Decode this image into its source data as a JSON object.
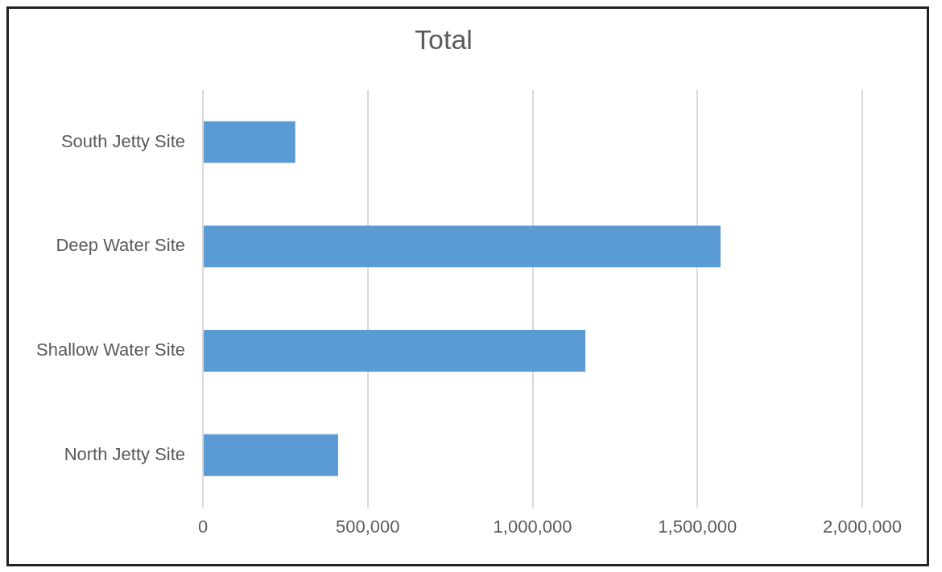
{
  "chart_data": {
    "type": "bar",
    "orientation": "horizontal",
    "title": "Total",
    "categories": [
      "South Jetty Site",
      "Deep Water Site",
      "Shallow Water Site",
      "North Jetty Site"
    ],
    "values": [
      280000,
      1570000,
      1160000,
      410000
    ],
    "color": "#5b9bd5",
    "xlim": [
      0,
      2000000
    ],
    "xticks": [
      0,
      {
        "value": 500000,
        "label": "500,000"
      },
      {
        "value": 1000000,
        "label": "1,000,000"
      },
      {
        "value": 1500000,
        "label": "1,500,000"
      },
      {
        "value": 2000000,
        "label": "2,000,000"
      }
    ],
    "grid": "x",
    "legend": false
  }
}
